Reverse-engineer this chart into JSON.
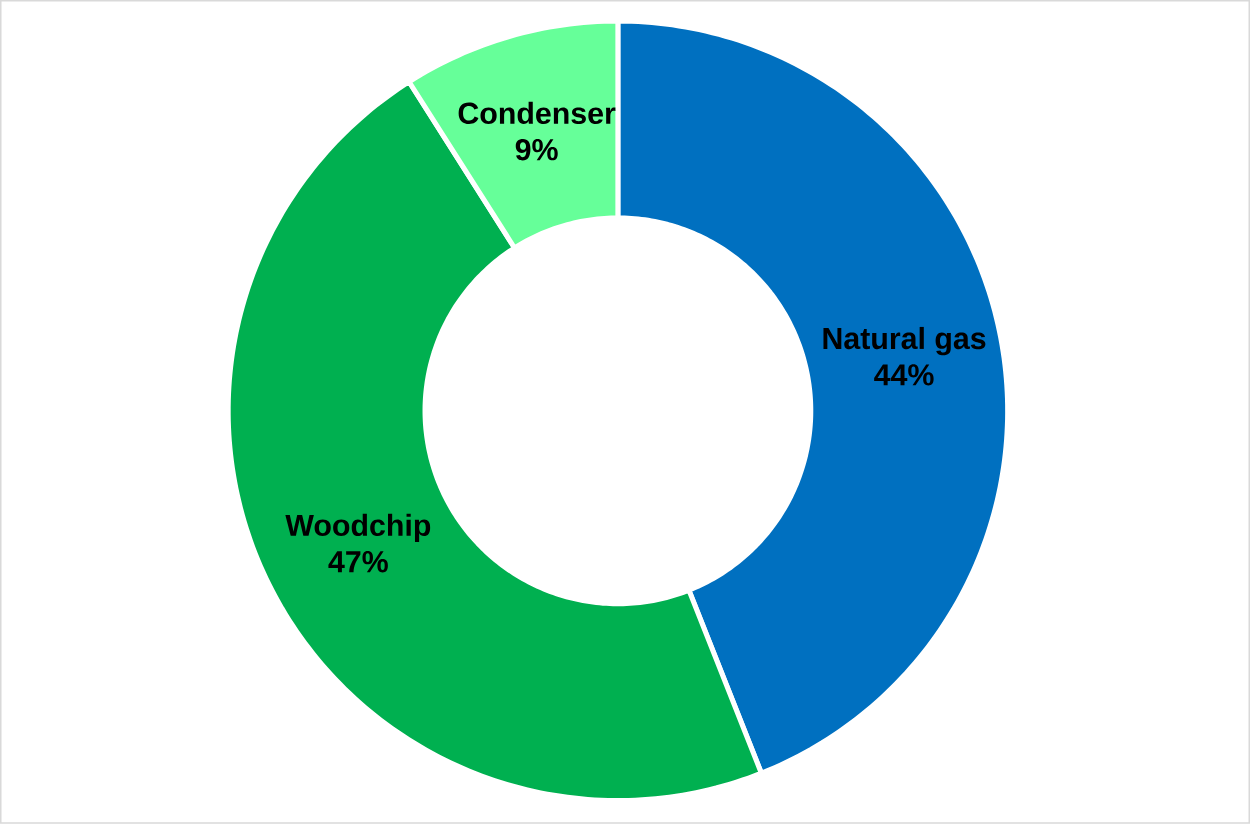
{
  "chart_data": {
    "type": "donut",
    "categories": [
      "Natural gas",
      "Woodchip",
      "Condenser"
    ],
    "values": [
      44,
      47,
      9
    ],
    "value_labels": [
      "44%",
      "47%",
      "9%"
    ],
    "colors": [
      "#0070c0",
      "#00b050",
      "#66ff99"
    ]
  }
}
